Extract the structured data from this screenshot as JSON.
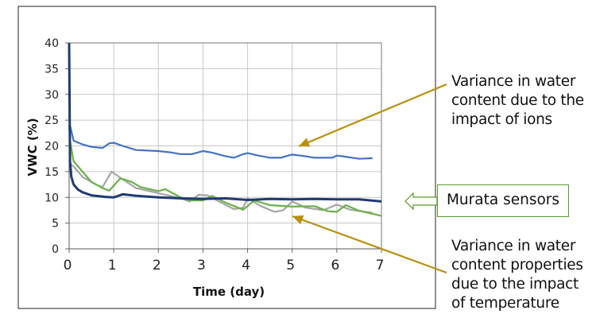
{
  "chart_data": {
    "type": "line",
    "title": "",
    "xlabel": "Time (day)",
    "ylabel": "VWC (%)",
    "xlim": [
      0,
      7
    ],
    "ylim": [
      0,
      40
    ],
    "xticks": [
      "0",
      "1",
      "2",
      "3",
      "4",
      "5",
      "6",
      "7"
    ],
    "yticks": [
      "0",
      "5",
      "10",
      "15",
      "20",
      "25",
      "30",
      "35",
      "40"
    ],
    "grid": true,
    "legend": "none",
    "series": [
      {
        "color": "#4472c4",
        "x": [
          0,
          0.02,
          0.1,
          0.3,
          0.5,
          0.75,
          0.9,
          1,
          1.2,
          1.5,
          2,
          2.3,
          2.5,
          2.75,
          3,
          3.2,
          3.5,
          3.7,
          3.9,
          4,
          4.2,
          4.5,
          4.75,
          4.9,
          5,
          5.2,
          5.5,
          5.9,
          6,
          6.1,
          6.5,
          6.8
        ],
        "y": [
          26,
          24,
          21,
          20.3,
          19.8,
          19.6,
          20.5,
          20.6,
          20,
          19.2,
          19,
          18.7,
          18.4,
          18.4,
          19,
          18.7,
          18,
          17.7,
          18.4,
          18.6,
          18.2,
          17.7,
          17.7,
          18.1,
          18.3,
          18.1,
          17.7,
          17.7,
          18.1,
          18,
          17.5,
          17.6
        ]
      },
      {
        "color": "#1f3b73",
        "x": [
          0,
          0.02,
          0.05,
          0.1,
          0.2,
          0.3,
          0.5,
          0.8,
          1,
          1.2,
          1.5,
          2,
          2.5,
          3,
          3.5,
          4,
          4.5,
          5,
          5.5,
          6,
          6.5,
          7
        ],
        "y": [
          40,
          17,
          14,
          12.5,
          11.5,
          11,
          10.4,
          10.1,
          10,
          10.6,
          10.3,
          10,
          9.8,
          9.7,
          9.8,
          9.5,
          9.7,
          9.6,
          9.7,
          9.6,
          9.6,
          9.2
        ]
      },
      {
        "color": "#6ab04c",
        "x": [
          0,
          0.02,
          0.1,
          0.3,
          0.5,
          0.75,
          0.9,
          1.15,
          1.4,
          1.6,
          2,
          2.15,
          2.5,
          2.7,
          3,
          3.2,
          3.5,
          3.9,
          4.15,
          4.5,
          5,
          5.5,
          5.8,
          6,
          6.2,
          6.5,
          7
        ],
        "y": [
          24,
          21,
          17,
          15,
          13,
          11.8,
          11.3,
          13.7,
          13,
          12,
          11.2,
          11.6,
          10,
          9.4,
          9.4,
          10.3,
          9,
          7.6,
          9.4,
          8.5,
          8.2,
          8.3,
          7.3,
          7.2,
          8.5,
          7.4,
          6.4
        ]
      },
      {
        "color": "#a6a6a6",
        "x": [
          0,
          0.02,
          0.1,
          0.3,
          0.6,
          0.75,
          0.95,
          1.2,
          1.5,
          2,
          2.5,
          2.7,
          2.9,
          3.1,
          3.4,
          3.7,
          3.9,
          4,
          4.3,
          4.6,
          4.8,
          5,
          5.3,
          5.7,
          6,
          6.3,
          6.8
        ],
        "y": [
          17,
          16.5,
          16,
          14,
          12.5,
          12,
          15,
          13.5,
          11.8,
          10.8,
          9.8,
          9.2,
          10.5,
          10.4,
          9,
          7.7,
          8,
          9.8,
          8.3,
          7.2,
          7.5,
          9.2,
          8,
          7.5,
          8.6,
          7.6,
          7
        ]
      }
    ]
  },
  "annotations": {
    "ions": [
      "Variance in water",
      "content due to the",
      "impact of ions"
    ],
    "murata": "Murata sensors",
    "temperature": [
      "Variance in water",
      "content properties",
      "due to the impact",
      "of temperature"
    ]
  },
  "colors": {
    "arrow": "#b8900c",
    "murata": "#5a9a2c"
  }
}
